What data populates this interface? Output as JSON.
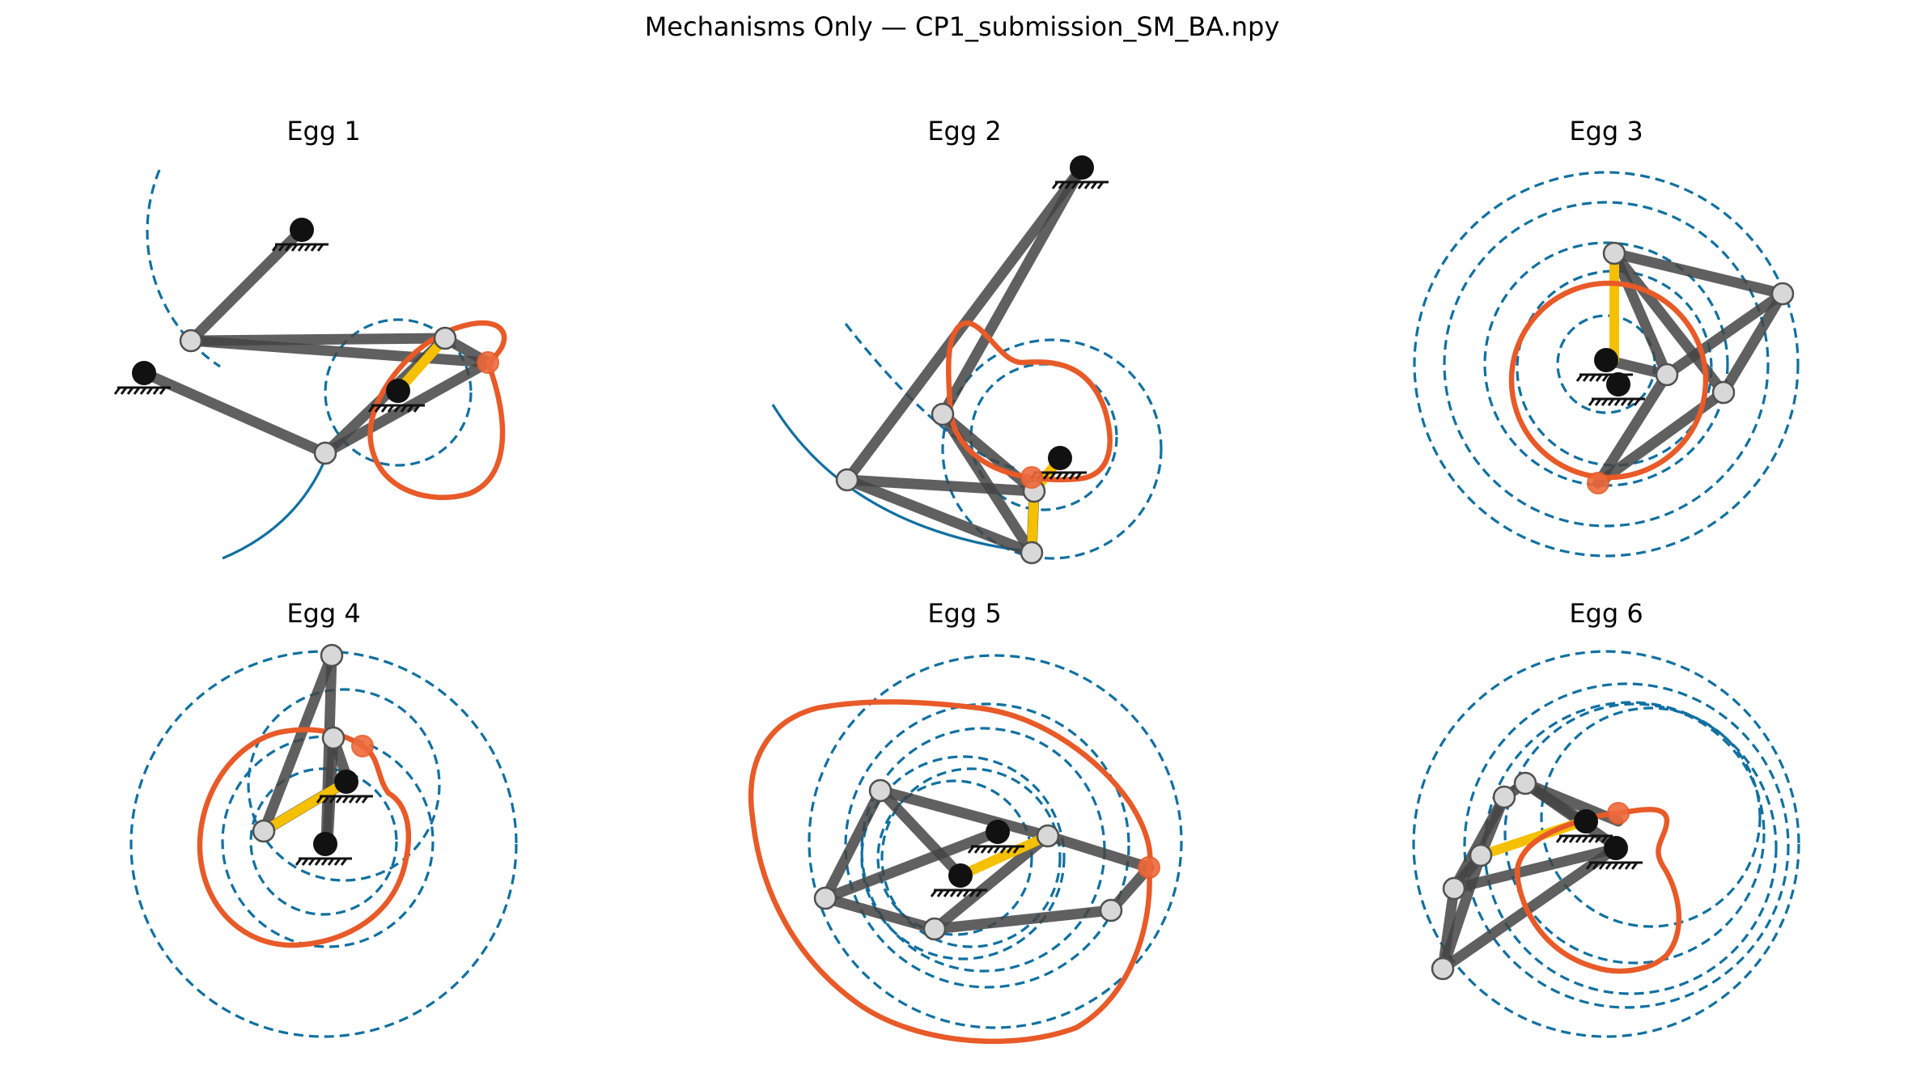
{
  "figure": {
    "title": "Mechanisms Only — CP1_submission_SM_BA.npy"
  },
  "panels": [
    {
      "title": "Egg 1"
    },
    {
      "title": "Egg 2"
    },
    {
      "title": "Egg 3"
    },
    {
      "title": "Egg 4"
    },
    {
      "title": "Egg 5"
    },
    {
      "title": "Egg 6"
    }
  ],
  "colors": {
    "link": "#444444",
    "input_crank": "#f5c000",
    "coupler_curve": "#e85a28",
    "joint_paths": "#1070a0",
    "ground_pin": "#111111"
  },
  "legend_semantics": {
    "ground_pin": "black filled circle with hatched ground",
    "joint": "light gray circle",
    "tracer": "orange circle at end of coupler curve"
  }
}
